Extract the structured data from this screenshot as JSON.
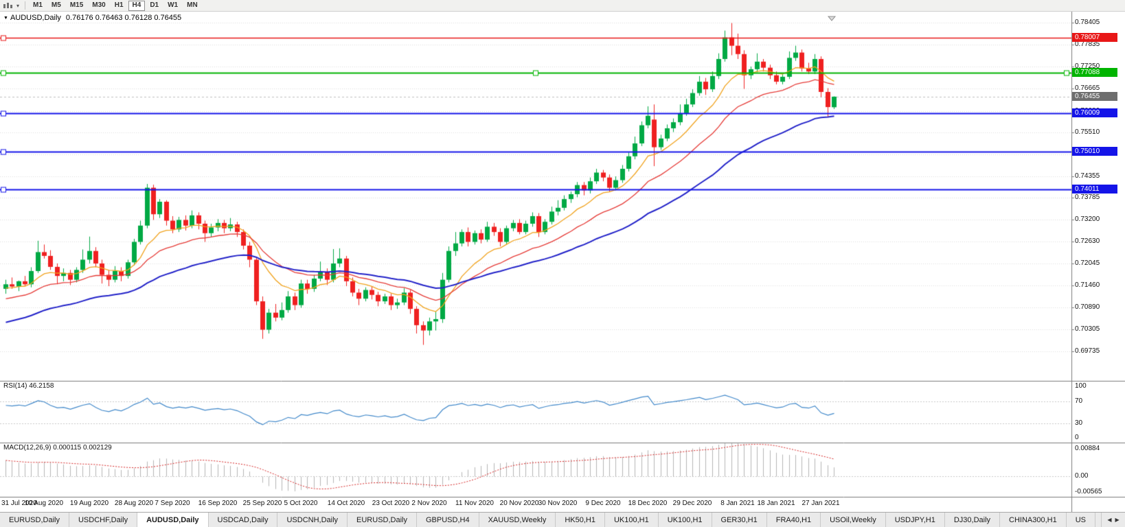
{
  "toolbar": {
    "timeframes": [
      {
        "label": "M1",
        "active": false
      },
      {
        "label": "M5",
        "active": false
      },
      {
        "label": "M15",
        "active": false
      },
      {
        "label": "M30",
        "active": false
      },
      {
        "label": "H1",
        "active": false
      },
      {
        "label": "H4",
        "active": true
      },
      {
        "label": "D1",
        "active": false
      },
      {
        "label": "W1",
        "active": false
      },
      {
        "label": "MN",
        "active": false
      }
    ]
  },
  "chart": {
    "title": {
      "symbol": "AUDUSD,Daily",
      "ohlc": "0.76176 0.76463 0.76128 0.76455",
      "caret": "▼"
    },
    "price_axis_ticks": [
      "0.78405",
      "0.77835",
      "0.77250",
      "0.76665",
      "0.76080",
      "0.75510",
      "0.74930",
      "0.74355",
      "0.73785",
      "0.73200",
      "0.72630",
      "0.72045",
      "0.71460",
      "0.70890",
      "0.70305",
      "0.69735"
    ],
    "bid_label": {
      "text": "0.76455",
      "value": 0.76455,
      "bg": "#6e6e6e"
    },
    "hlines": [
      {
        "label": "0.78007",
        "value": 0.78007,
        "color": "#e81717",
        "width": 1.5,
        "markers": "left"
      },
      {
        "label": "0.77088",
        "value": 0.77088,
        "color": "#00b400",
        "width": 2,
        "markers": "left-center-right"
      },
      {
        "label": "0.76009",
        "value": 0.76009,
        "color": "#1414e8",
        "width": 2,
        "markers": "left"
      },
      {
        "label": "0.75010",
        "value": 0.7501,
        "color": "#1414e8",
        "width": 2,
        "markers": "left"
      },
      {
        "label": "0.74011",
        "value": 0.74011,
        "color": "#1414e8",
        "width": 2,
        "markers": "left"
      }
    ],
    "colors": {
      "bull": "#00a944",
      "bear": "#ef2020",
      "grid": "#dcdcdc",
      "axis_line": "#7b7b7b",
      "level_dotted": "#c8c8c8",
      "bid_line": "#bdbdbd"
    },
    "date_labels": [
      {
        "label": "31 Jul 2020",
        "bar": 0
      },
      {
        "label": "10 Aug 2020",
        "bar": 6
      },
      {
        "label": "19 Aug 2020",
        "bar": 13
      },
      {
        "label": "28 Aug 2020",
        "bar": 20
      },
      {
        "label": "7 Sep 2020",
        "bar": 26
      },
      {
        "label": "16 Sep 2020",
        "bar": 33
      },
      {
        "label": "25 Sep 2020",
        "bar": 40
      },
      {
        "label": "5 Oct 2020",
        "bar": 46
      },
      {
        "label": "14 Oct 2020",
        "bar": 53
      },
      {
        "label": "23 Oct 2020",
        "bar": 60
      },
      {
        "label": "2 Nov 2020",
        "bar": 66
      },
      {
        "label": "11 Nov 2020",
        "bar": 73
      },
      {
        "label": "20 Nov 2020",
        "bar": 80
      },
      {
        "label": "30 Nov 2020",
        "bar": 86
      },
      {
        "label": "9 Dec 2020",
        "bar": 93
      },
      {
        "label": "18 Dec 2020",
        "bar": 100
      },
      {
        "label": "29 Dec 2020",
        "bar": 107
      },
      {
        "label": "8 Jan 2021",
        "bar": 114
      },
      {
        "label": "18 Jan 2021",
        "bar": 120
      },
      {
        "label": "27 Jan 2021",
        "bar": 127
      }
    ]
  },
  "rsi_panel": {
    "name": "RSI(14)",
    "value": "46.2158",
    "line_color": "#3f87c9",
    "ticks": [
      {
        "label": "100",
        "value": 100
      },
      {
        "label": "70",
        "value": 70
      },
      {
        "label": "30",
        "value": 30
      },
      {
        "label": "0",
        "value": 0
      }
    ]
  },
  "macd_panel": {
    "name": "MACD(12,26,9)",
    "values": "0.000115 0.002129",
    "hist_color": "#b5b5b5",
    "signal_color": "#d42020",
    "axis_max": 0.00884,
    "axis_min": -0.00565,
    "ticks": [
      {
        "label": "0.00884",
        "value": 0.00884
      },
      {
        "label": "0.00",
        "value": 0
      },
      {
        "label": "-0.00565",
        "value": -0.00565
      }
    ]
  },
  "tabs": {
    "scroll_left": "◀",
    "scroll_right": "▶",
    "items": [
      {
        "label": "EURUSD,Daily",
        "active": false
      },
      {
        "label": "USDCHF,Daily",
        "active": false
      },
      {
        "label": "AUDUSD,Daily",
        "active": true
      },
      {
        "label": "USDCAD,Daily",
        "active": false
      },
      {
        "label": "USDCNH,Daily",
        "active": false
      },
      {
        "label": "EURUSD,Daily",
        "active": false
      },
      {
        "label": "GBPUSD,H4",
        "active": false
      },
      {
        "label": "XAUUSD,Weekly",
        "active": false
      },
      {
        "label": "HK50,H1",
        "active": false
      },
      {
        "label": "UK100,H1",
        "active": false
      },
      {
        "label": "UK100,H1",
        "active": false
      },
      {
        "label": "GER30,H1",
        "active": false
      },
      {
        "label": "FRA40,H1",
        "active": false
      },
      {
        "label": "USOil,Weekly",
        "active": false
      },
      {
        "label": "USDJPY,H1",
        "active": false
      },
      {
        "label": "DJ30,Daily",
        "active": false
      },
      {
        "label": "CHINA300,H1",
        "active": false
      },
      {
        "label": "US",
        "active": false
      }
    ]
  },
  "chart_data": {
    "type": "candlestick",
    "symbol": "AUDUSD",
    "period": "Daily",
    "visible_range": {
      "first_date": "31 Jul 2020",
      "last_date": "29 Jan 2021"
    },
    "last_bar_ohlc": {
      "open": 0.76176,
      "high": 0.76463,
      "low": 0.76128,
      "close": 0.76455
    },
    "horizontal_lines": [
      0.78007,
      0.77088,
      0.76009,
      0.7501,
      0.74011
    ],
    "price_axis_range": [
      0.69735,
      0.78405
    ],
    "candles_ohlc": [
      [
        0.7138,
        0.7162,
        0.7125,
        0.715
      ],
      [
        0.715,
        0.7168,
        0.7138,
        0.7144
      ],
      [
        0.7144,
        0.716,
        0.7132,
        0.7158
      ],
      [
        0.7158,
        0.7172,
        0.7145,
        0.715
      ],
      [
        0.715,
        0.7195,
        0.7142,
        0.7185
      ],
      [
        0.7185,
        0.7265,
        0.718,
        0.7235
      ],
      [
        0.7235,
        0.7255,
        0.7218,
        0.7225
      ],
      [
        0.7225,
        0.724,
        0.7188,
        0.7196
      ],
      [
        0.7196,
        0.7205,
        0.715,
        0.7172
      ],
      [
        0.7172,
        0.7192,
        0.7158,
        0.718
      ],
      [
        0.718,
        0.7188,
        0.7148,
        0.7162
      ],
      [
        0.7162,
        0.7195,
        0.7155,
        0.7188
      ],
      [
        0.7188,
        0.7242,
        0.718,
        0.7215
      ],
      [
        0.7215,
        0.7276,
        0.7205,
        0.7238
      ],
      [
        0.7238,
        0.7248,
        0.7195,
        0.7205
      ],
      [
        0.7205,
        0.7215,
        0.7152,
        0.7175
      ],
      [
        0.7175,
        0.7188,
        0.7145,
        0.7162
      ],
      [
        0.7162,
        0.7198,
        0.7155,
        0.7185
      ],
      [
        0.7185,
        0.7195,
        0.7158,
        0.7172
      ],
      [
        0.7172,
        0.7215,
        0.7165,
        0.7208
      ],
      [
        0.7208,
        0.727,
        0.72,
        0.7262
      ],
      [
        0.7262,
        0.7318,
        0.7255,
        0.7305
      ],
      [
        0.7305,
        0.7415,
        0.7298,
        0.7405
      ],
      [
        0.7405,
        0.7413,
        0.732,
        0.7335
      ],
      [
        0.7335,
        0.7375,
        0.7325,
        0.7368
      ],
      [
        0.7368,
        0.7372,
        0.7305,
        0.7318
      ],
      [
        0.7318,
        0.733,
        0.7285,
        0.7295
      ],
      [
        0.7295,
        0.7328,
        0.7288,
        0.732
      ],
      [
        0.732,
        0.7332,
        0.7292,
        0.7305
      ],
      [
        0.7305,
        0.7345,
        0.7298,
        0.7332
      ],
      [
        0.7332,
        0.734,
        0.7295,
        0.731
      ],
      [
        0.731,
        0.7318,
        0.7262,
        0.7285
      ],
      [
        0.7285,
        0.731,
        0.7275,
        0.73
      ],
      [
        0.73,
        0.7322,
        0.729,
        0.7312
      ],
      [
        0.7312,
        0.732,
        0.7285,
        0.7298
      ],
      [
        0.7298,
        0.7325,
        0.729,
        0.7308
      ],
      [
        0.7308,
        0.7315,
        0.7275,
        0.7288
      ],
      [
        0.7288,
        0.7295,
        0.7242,
        0.7252
      ],
      [
        0.7252,
        0.7262,
        0.7195,
        0.7215
      ],
      [
        0.7215,
        0.7222,
        0.7095,
        0.7105
      ],
      [
        0.7105,
        0.7118,
        0.7006,
        0.703
      ],
      [
        0.703,
        0.7085,
        0.702,
        0.7075
      ],
      [
        0.7075,
        0.7098,
        0.7052,
        0.7062
      ],
      [
        0.7062,
        0.7102,
        0.7055,
        0.7082
      ],
      [
        0.7082,
        0.7132,
        0.7075,
        0.7118
      ],
      [
        0.7118,
        0.7128,
        0.7082,
        0.7095
      ],
      [
        0.7095,
        0.7162,
        0.7088,
        0.7152
      ],
      [
        0.7152,
        0.7162,
        0.7125,
        0.7138
      ],
      [
        0.7138,
        0.7175,
        0.713,
        0.7165
      ],
      [
        0.7165,
        0.721,
        0.7158,
        0.7182
      ],
      [
        0.7182,
        0.7192,
        0.7148,
        0.7162
      ],
      [
        0.7162,
        0.7243,
        0.7155,
        0.7205
      ],
      [
        0.7205,
        0.7245,
        0.7195,
        0.7218
      ],
      [
        0.7218,
        0.7225,
        0.7145,
        0.7158
      ],
      [
        0.7158,
        0.7168,
        0.7118,
        0.7128
      ],
      [
        0.7128,
        0.7138,
        0.7095,
        0.7112
      ],
      [
        0.7112,
        0.7142,
        0.7105,
        0.7135
      ],
      [
        0.7135,
        0.7145,
        0.711,
        0.7122
      ],
      [
        0.7122,
        0.713,
        0.7092,
        0.7105
      ],
      [
        0.7105,
        0.7125,
        0.7098,
        0.7118
      ],
      [
        0.7118,
        0.7125,
        0.7082,
        0.7095
      ],
      [
        0.7095,
        0.7112,
        0.7085,
        0.7102
      ],
      [
        0.7102,
        0.714,
        0.7095,
        0.7128
      ],
      [
        0.7128,
        0.7135,
        0.7072,
        0.7085
      ],
      [
        0.7085,
        0.7092,
        0.702,
        0.7042
      ],
      [
        0.7042,
        0.7052,
        0.699,
        0.7028
      ],
      [
        0.7028,
        0.7062,
        0.7015,
        0.7052
      ],
      [
        0.7052,
        0.7078,
        0.7028,
        0.7058
      ],
      [
        0.7058,
        0.718,
        0.7048,
        0.7162
      ],
      [
        0.7162,
        0.725,
        0.7155,
        0.7238
      ],
      [
        0.7238,
        0.7288,
        0.7225,
        0.7258
      ],
      [
        0.7258,
        0.7295,
        0.725,
        0.7288
      ],
      [
        0.7288,
        0.73,
        0.725,
        0.7262
      ],
      [
        0.7262,
        0.7292,
        0.7255,
        0.7285
      ],
      [
        0.7285,
        0.7295,
        0.7258,
        0.7268
      ],
      [
        0.7268,
        0.7315,
        0.7262,
        0.7302
      ],
      [
        0.7302,
        0.7312,
        0.7278,
        0.7288
      ],
      [
        0.7288,
        0.7298,
        0.725,
        0.7262
      ],
      [
        0.7262,
        0.7305,
        0.7255,
        0.7298
      ],
      [
        0.7298,
        0.732,
        0.729,
        0.7312
      ],
      [
        0.7312,
        0.7322,
        0.7282,
        0.7288
      ],
      [
        0.7288,
        0.7318,
        0.7282,
        0.731
      ],
      [
        0.731,
        0.734,
        0.7302,
        0.733
      ],
      [
        0.733,
        0.7338,
        0.7275,
        0.7288
      ],
      [
        0.7288,
        0.7322,
        0.7282,
        0.7315
      ],
      [
        0.7315,
        0.7355,
        0.7308,
        0.7342
      ],
      [
        0.7342,
        0.7372,
        0.7332,
        0.7352
      ],
      [
        0.7352,
        0.7385,
        0.7345,
        0.7375
      ],
      [
        0.7375,
        0.7395,
        0.7365,
        0.7388
      ],
      [
        0.7388,
        0.742,
        0.738,
        0.7412
      ],
      [
        0.7412,
        0.742,
        0.7385,
        0.7398
      ],
      [
        0.7398,
        0.7432,
        0.739,
        0.7422
      ],
      [
        0.7422,
        0.7455,
        0.7415,
        0.7445
      ],
      [
        0.7445,
        0.7452,
        0.7422,
        0.7432
      ],
      [
        0.7432,
        0.744,
        0.7395,
        0.7405
      ],
      [
        0.7405,
        0.7435,
        0.7398,
        0.7425
      ],
      [
        0.7425,
        0.7465,
        0.7418,
        0.7455
      ],
      [
        0.7455,
        0.7498,
        0.7448,
        0.7488
      ],
      [
        0.7488,
        0.754,
        0.748,
        0.7522
      ],
      [
        0.7522,
        0.758,
        0.7515,
        0.757
      ],
      [
        0.757,
        0.762,
        0.7562,
        0.7595
      ],
      [
        0.7585,
        0.7625,
        0.7462,
        0.7512
      ],
      [
        0.7512,
        0.7545,
        0.7505,
        0.7535
      ],
      [
        0.7535,
        0.7572,
        0.7528,
        0.7562
      ],
      [
        0.7562,
        0.7588,
        0.7552,
        0.7578
      ],
      [
        0.7578,
        0.7625,
        0.757,
        0.7602
      ],
      [
        0.7602,
        0.764,
        0.7595,
        0.7625
      ],
      [
        0.7625,
        0.7665,
        0.7618,
        0.7655
      ],
      [
        0.7655,
        0.77,
        0.7648,
        0.7685
      ],
      [
        0.7685,
        0.7695,
        0.765,
        0.7665
      ],
      [
        0.7665,
        0.7712,
        0.7658,
        0.77
      ],
      [
        0.77,
        0.776,
        0.7692,
        0.7745
      ],
      [
        0.7745,
        0.782,
        0.7738,
        0.7802
      ],
      [
        0.7802,
        0.784,
        0.7755,
        0.778
      ],
      [
        0.778,
        0.7812,
        0.7745,
        0.7758
      ],
      [
        0.7758,
        0.7768,
        0.7666,
        0.7702
      ],
      [
        0.7702,
        0.7725,
        0.7692,
        0.7718
      ],
      [
        0.7718,
        0.776,
        0.771,
        0.7738
      ],
      [
        0.7738,
        0.7745,
        0.7712,
        0.7722
      ],
      [
        0.7722,
        0.773,
        0.7692,
        0.7702
      ],
      [
        0.7702,
        0.7712,
        0.7678,
        0.7685
      ],
      [
        0.7685,
        0.7705,
        0.7678,
        0.7698
      ],
      [
        0.7698,
        0.7765,
        0.7692,
        0.7748
      ],
      [
        0.7748,
        0.778,
        0.774,
        0.7762
      ],
      [
        0.7762,
        0.777,
        0.7712,
        0.772
      ],
      [
        0.772,
        0.7735,
        0.7705,
        0.7712
      ],
      [
        0.7712,
        0.7758,
        0.7705,
        0.7745
      ],
      [
        0.7745,
        0.7752,
        0.7645,
        0.7658
      ],
      [
        0.7658,
        0.7668,
        0.7592,
        0.7618
      ],
      [
        0.76176,
        0.76463,
        0.76128,
        0.76455
      ]
    ],
    "moving_averages": [
      {
        "name": "fast",
        "period": 10,
        "color": "#f0a21c",
        "seed": 0.7138
      },
      {
        "name": "medium",
        "period": 21,
        "color": "#e53935",
        "seed": 0.7108
      },
      {
        "name": "slow",
        "period": 45,
        "color": "#2121c8",
        "seed": 0.7045
      }
    ],
    "indicators": [
      {
        "type": "RSI",
        "period": 14,
        "current": 46.2158,
        "levels": [
          70,
          30
        ],
        "seed_gain": 0.0015,
        "seed_loss": 0.0009
      },
      {
        "type": "MACD",
        "fast": 12,
        "slow": 26,
        "signal": 9,
        "current_main": 0.000115,
        "current_signal": 0.002129,
        "seed_fast": 0.715,
        "seed_slow": 0.71
      }
    ]
  }
}
